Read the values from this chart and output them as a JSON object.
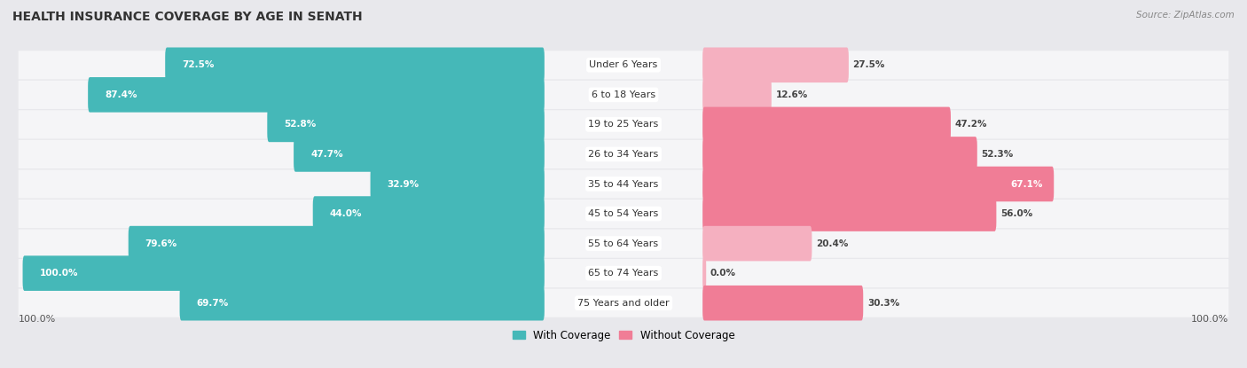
{
  "title": "HEALTH INSURANCE COVERAGE BY AGE IN SENATH",
  "source": "Source: ZipAtlas.com",
  "categories": [
    "Under 6 Years",
    "6 to 18 Years",
    "19 to 25 Years",
    "26 to 34 Years",
    "35 to 44 Years",
    "45 to 54 Years",
    "55 to 64 Years",
    "65 to 74 Years",
    "75 Years and older"
  ],
  "with_coverage": [
    72.5,
    87.4,
    52.8,
    47.7,
    32.9,
    44.0,
    79.6,
    100.0,
    69.7
  ],
  "without_coverage": [
    27.5,
    12.6,
    47.2,
    52.3,
    67.1,
    56.0,
    20.4,
    0.0,
    30.3
  ],
  "color_with": "#45b8b8",
  "color_without": "#f07d96",
  "color_without_light": "#f5b0c0",
  "bg_color": "#e8e8ec",
  "row_bg_light": "#f5f5f7",
  "title_fontsize": 10,
  "label_fontsize": 8,
  "bar_value_fontsize": 7.5,
  "legend_fontsize": 8.5,
  "axis_label_fontsize": 8
}
